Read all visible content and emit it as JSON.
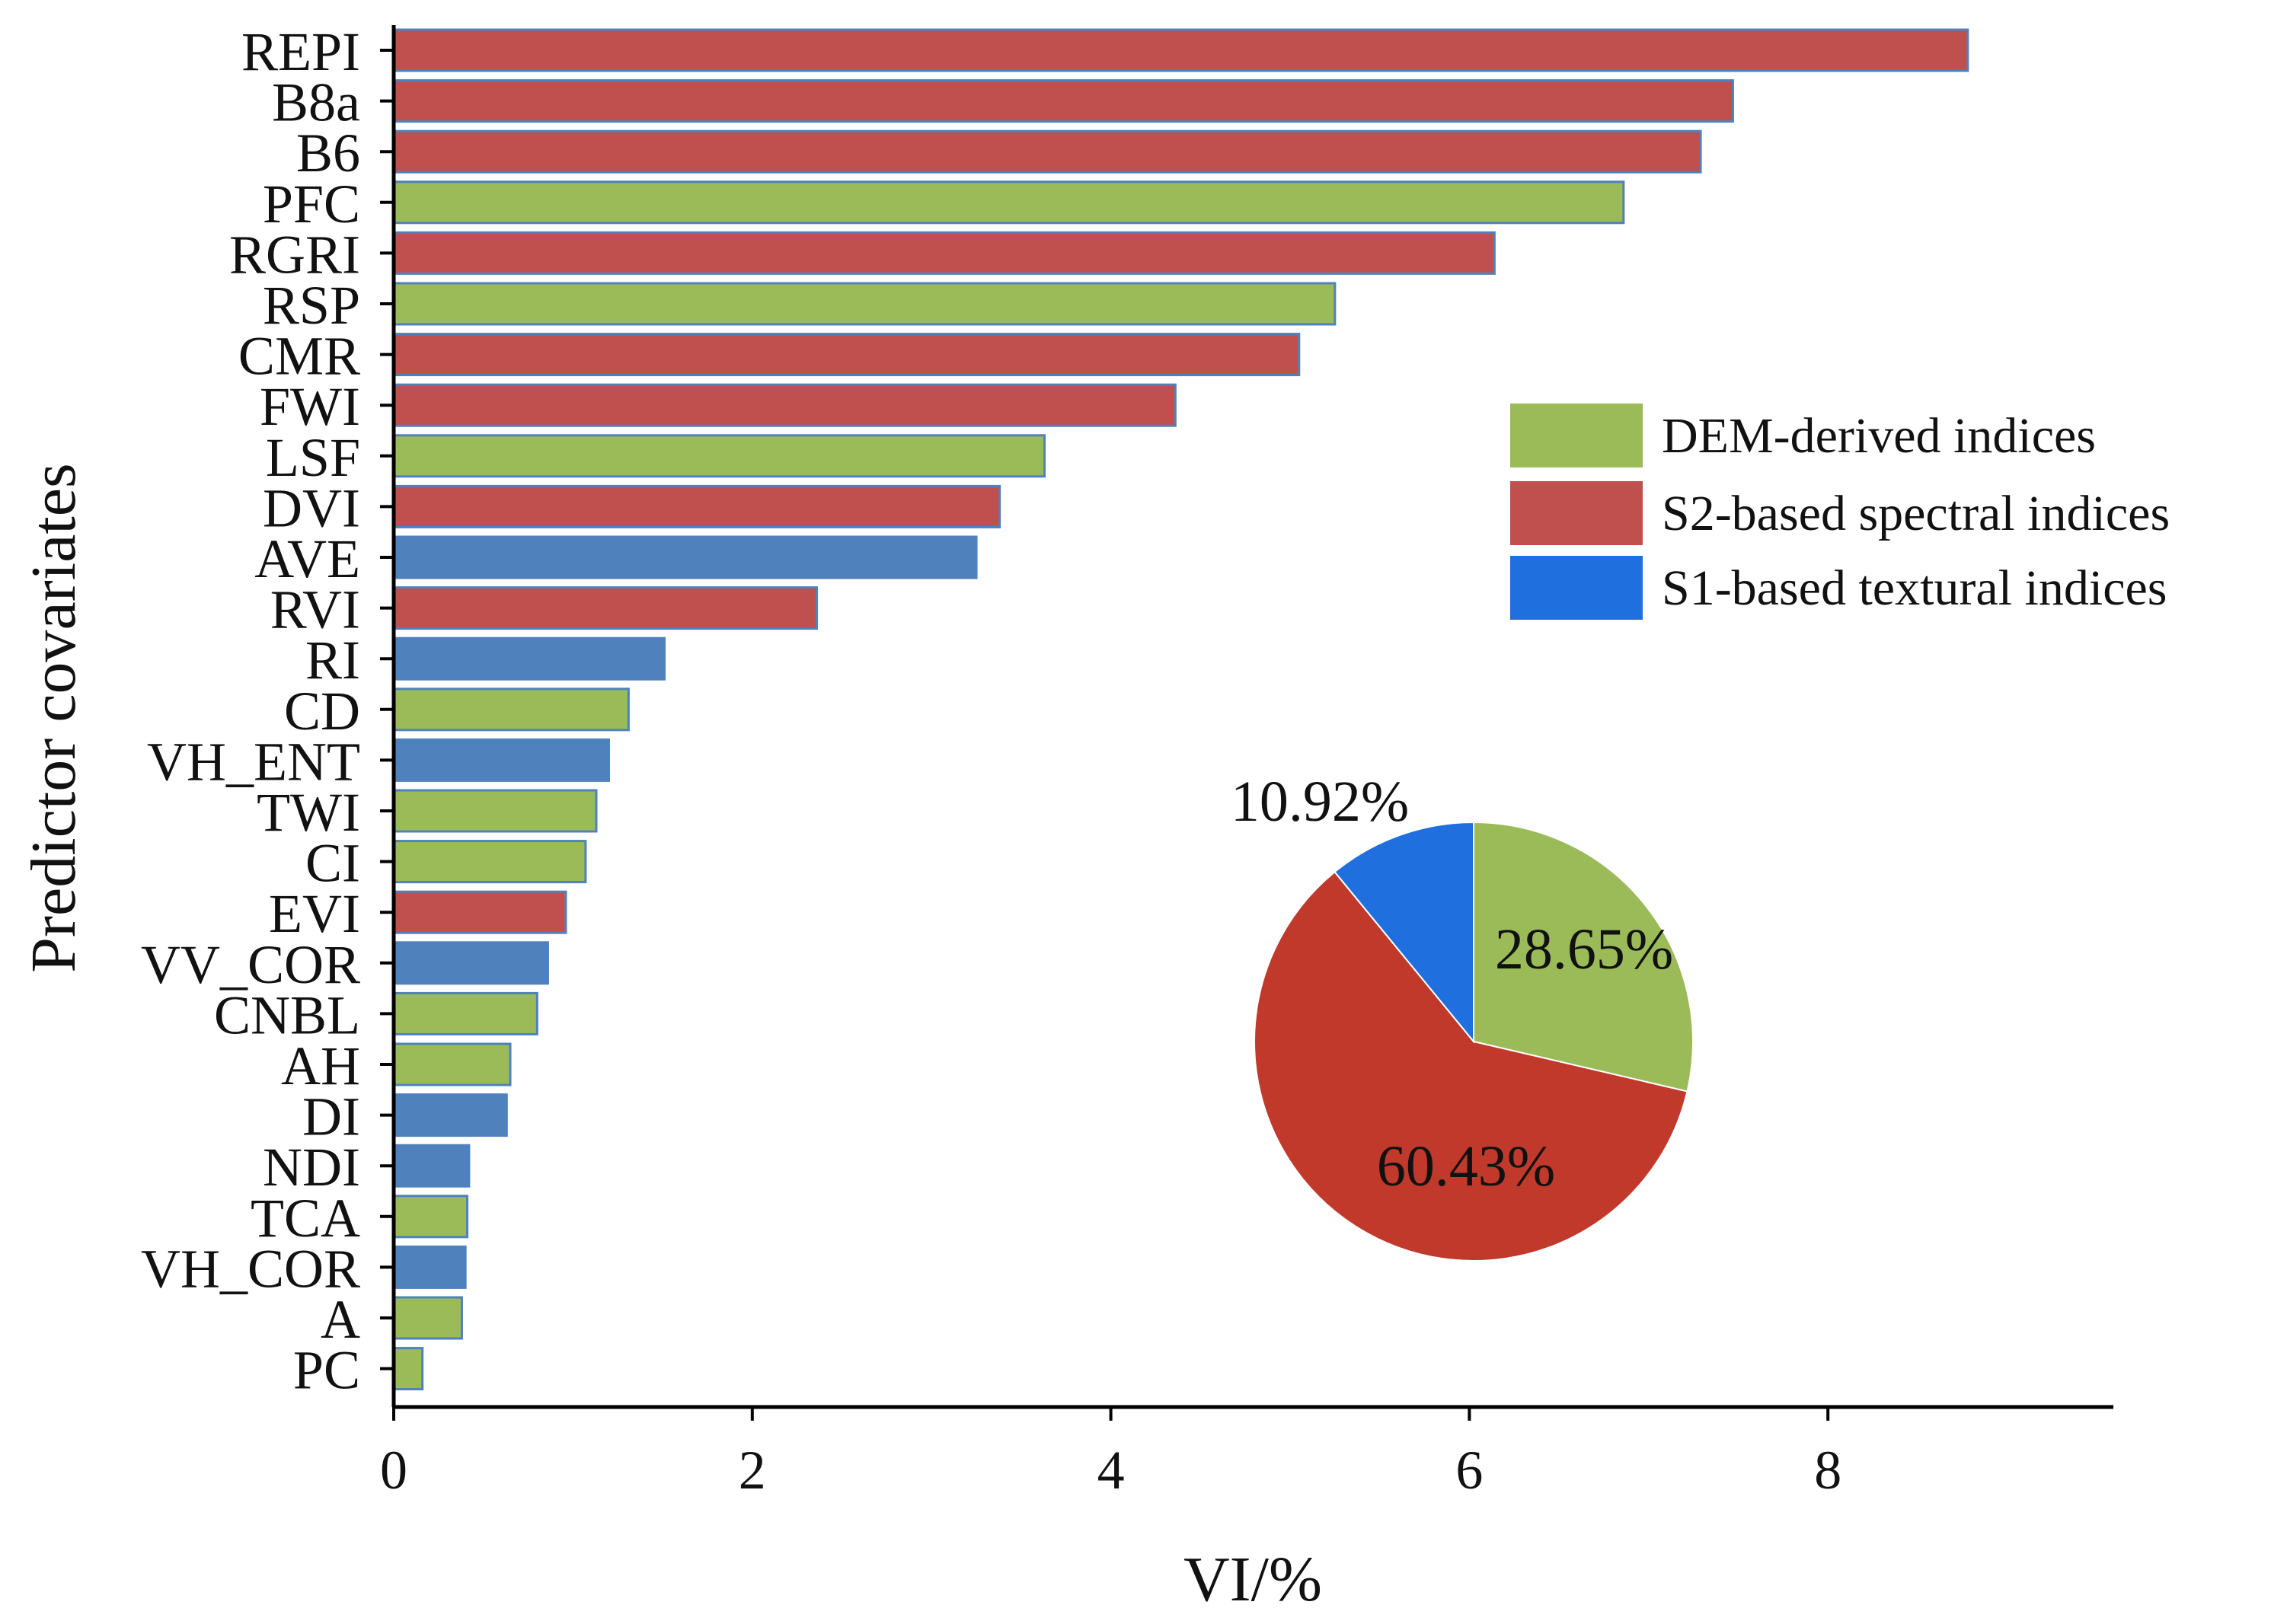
{
  "chart_data": [
    {
      "type": "bar",
      "orientation": "horizontal",
      "xlabel": "VI/%",
      "ylabel": "Predictor covariates",
      "xlim": [
        0,
        9.6
      ],
      "xticks": [
        0,
        2,
        4,
        6,
        8
      ],
      "xtick_labels": [
        "0",
        "2",
        "4",
        "6",
        "8"
      ],
      "grid": false,
      "categories": [
        "REPI",
        "B8a",
        "B6",
        "PFC",
        "RGRI",
        "RSP",
        "CMR",
        "FWI",
        "LSF",
        "DVI",
        "AVE",
        "RVI",
        "RI",
        "CD",
        "VH_ENT",
        "TWI",
        "CI",
        "EVI",
        "VV_COR",
        "CNBL",
        "AH",
        "DI",
        "NDI",
        "TCA",
        "VH_COR",
        "A",
        "PC"
      ],
      "values": [
        8.78,
        7.47,
        7.29,
        6.86,
        6.14,
        5.25,
        5.05,
        4.36,
        3.63,
        3.38,
        3.25,
        2.36,
        1.51,
        1.31,
        1.2,
        1.13,
        1.07,
        0.96,
        0.86,
        0.8,
        0.65,
        0.63,
        0.42,
        0.41,
        0.4,
        0.38,
        0.16
      ],
      "groups": [
        "S2",
        "S2",
        "S2",
        "DEM",
        "S2",
        "DEM",
        "S2",
        "S2",
        "DEM",
        "S2",
        "S1",
        "S2",
        "S1",
        "DEM",
        "S1",
        "DEM",
        "DEM",
        "S2",
        "S1",
        "DEM",
        "DEM",
        "S1",
        "S1",
        "DEM",
        "S1",
        "DEM",
        "DEM"
      ],
      "group_colors": {
        "DEM": "#9BBB59",
        "S2": "#C0504D",
        "S1": "#4F81BD"
      },
      "bar_outline_color": "#4F81BD",
      "legend": {
        "placement": "center-right",
        "entries": [
          {
            "label": "DEM-derived indices",
            "color": "#9BBB59"
          },
          {
            "label": "S2-based spectral indices",
            "color": "#C0504D"
          },
          {
            "label": "S1-based textural indices",
            "color": "#1F6FDF"
          }
        ]
      }
    },
    {
      "type": "pie",
      "placement": "lower-right inset",
      "slices": [
        {
          "label": "28.65%",
          "value": 28.65,
          "color": "#9BBB59"
        },
        {
          "label": "60.43%",
          "value": 60.43,
          "color": "#C0392B"
        },
        {
          "label": "10.92%",
          "value": 10.92,
          "color": "#1F6FDF"
        }
      ]
    }
  ]
}
